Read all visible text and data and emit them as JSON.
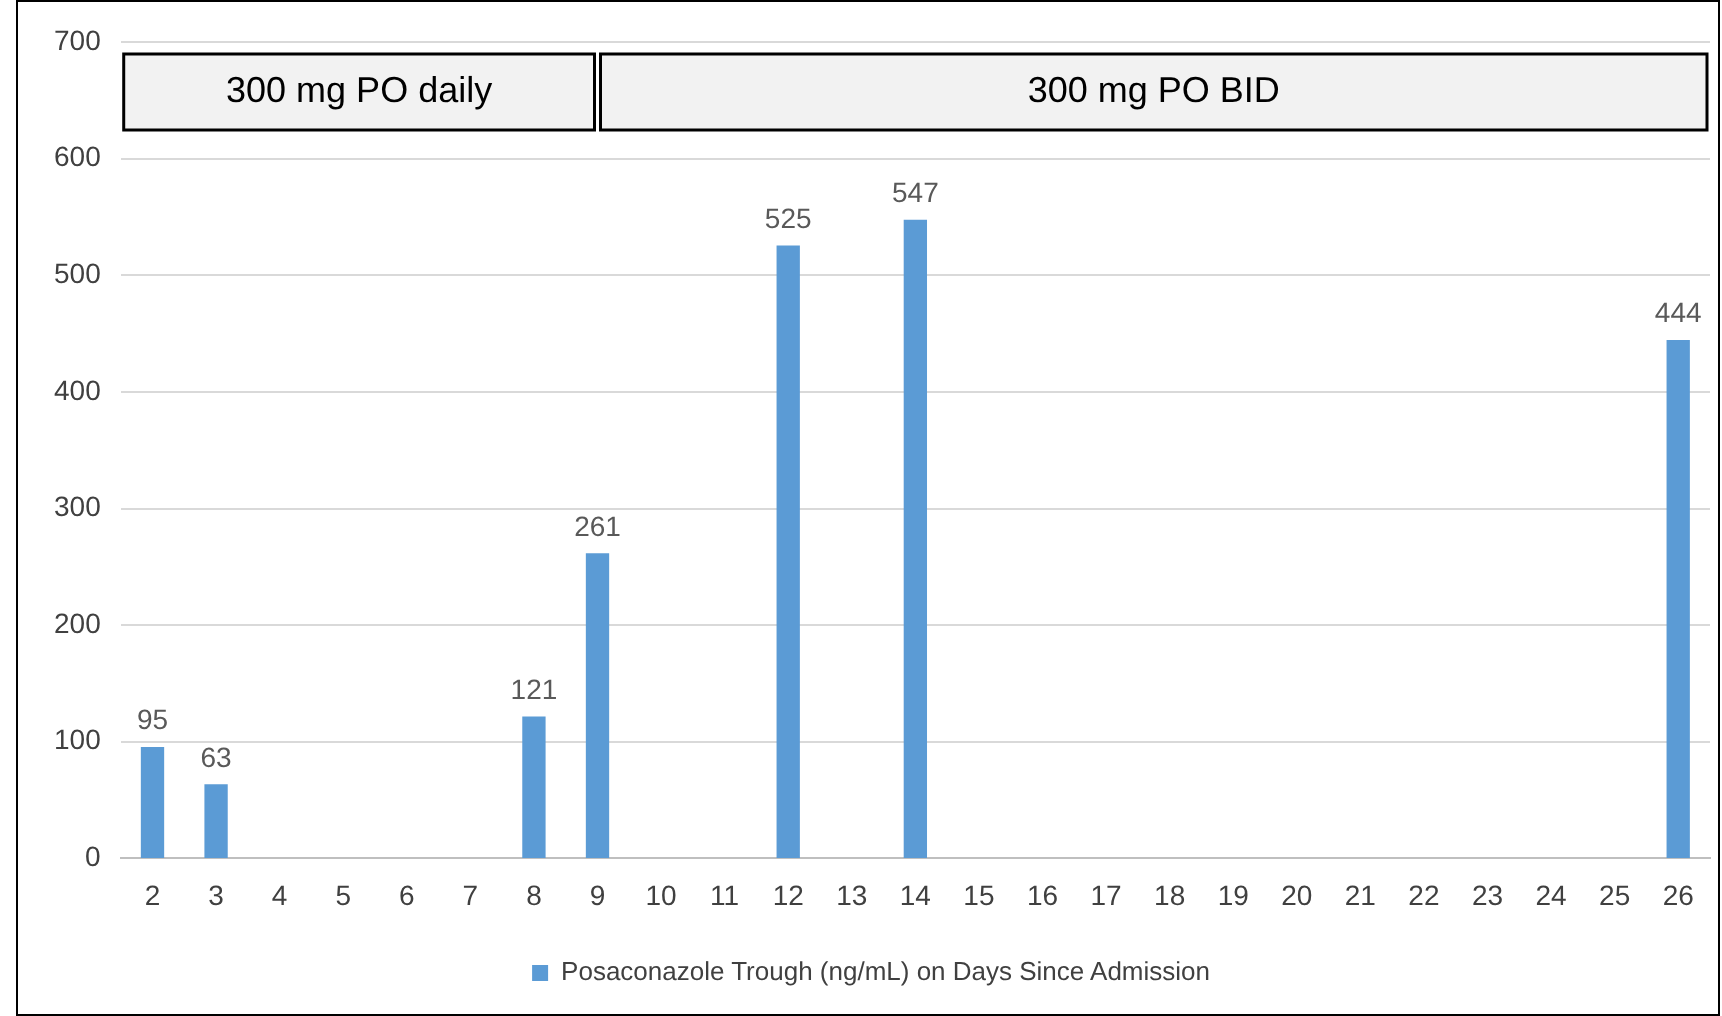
{
  "chart_data": {
    "type": "bar",
    "x": [
      2,
      3,
      8,
      9,
      12,
      14,
      26
    ],
    "series": [
      {
        "name": "Posaconazole Trough (ng/mL) on Days Since Admission",
        "color": "#5b9bd5",
        "values": [
          95,
          63,
          121,
          261,
          525,
          547,
          444
        ]
      }
    ],
    "xlim": [
      1.5,
      26.5
    ],
    "xticks": [
      2,
      3,
      4,
      5,
      6,
      7,
      8,
      9,
      10,
      11,
      12,
      13,
      14,
      15,
      16,
      17,
      18,
      19,
      20,
      21,
      22,
      23,
      24,
      25,
      26
    ],
    "ylim": [
      0,
      700
    ],
    "yticks": [
      0,
      100,
      200,
      300,
      400,
      500,
      600,
      700
    ],
    "grid": "y",
    "legend": "bottom",
    "data_labels": true,
    "bands": [
      {
        "axis": "x",
        "from": 1.5,
        "to": 9,
        "label": "300 mg PO daily",
        "color": "#f2f2f2"
      },
      {
        "axis": "x",
        "from": 9,
        "to": 26.5,
        "label": "300 mg PO BID",
        "color": "#f2f2f2"
      }
    ]
  }
}
